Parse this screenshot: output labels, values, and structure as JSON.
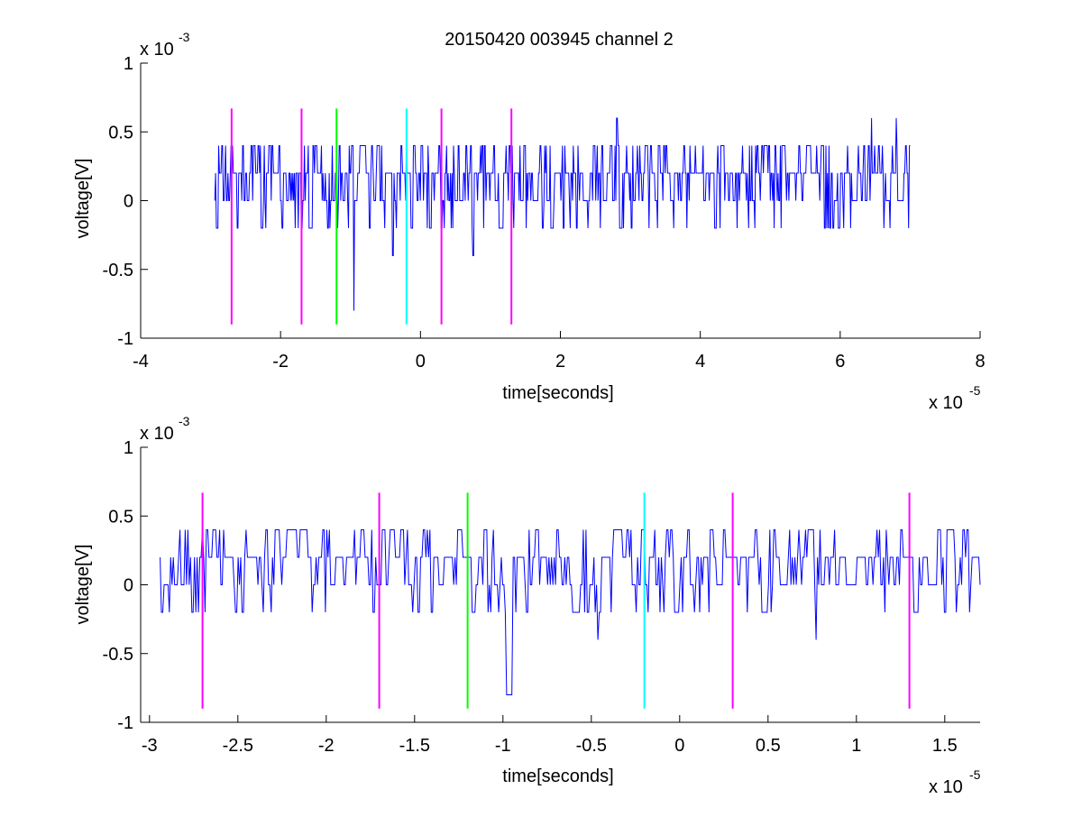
{
  "figure": {
    "title": "20150420 003945 channel 2"
  },
  "chart_data": [
    {
      "type": "line",
      "title": "20150420 003945 channel 2",
      "xlabel": "time[seconds]",
      "ylabel": "voltage[V]",
      "x_exponent": "x 10",
      "x_exponent_power": "-5",
      "y_exponent": "x 10",
      "y_exponent_power": "-3",
      "xlim": [
        -4,
        8
      ],
      "ylim": [
        -1,
        1
      ],
      "x_ticks": [
        -4,
        -2,
        0,
        2,
        4,
        6,
        8
      ],
      "x_tick_labels": [
        "-4",
        "-2",
        "0",
        "2",
        "4",
        "6",
        "8"
      ],
      "y_ticks": [
        -1,
        -0.5,
        0,
        0.5,
        1
      ],
      "y_tick_labels": [
        "-1",
        "-0.5",
        "0",
        "0.5",
        "1"
      ],
      "grid": false,
      "series": [
        {
          "color": "#0000ff",
          "x_range": [
            -2.94,
            7.0
          ],
          "levels": [
            0,
            0.2,
            0.4,
            0.6,
            -0.2,
            -0.4,
            -0.8
          ],
          "spikes": [
            {
              "x": -0.95,
              "y": -0.8
            },
            {
              "x": -0.4,
              "y": -0.4
            },
            {
              "x": 0.75,
              "y": -0.4
            },
            {
              "x": 2.8,
              "y": 0.6
            },
            {
              "x": 6.45,
              "y": 0.6
            },
            {
              "x": 6.8,
              "y": 0.6
            }
          ]
        }
      ],
      "markers": [
        {
          "x": -2.7,
          "y_from": -0.9,
          "y_to": 0.67,
          "color": "#ff00ff"
        },
        {
          "x": -1.7,
          "y_from": -0.9,
          "y_to": 0.67,
          "color": "#ff00ff"
        },
        {
          "x": -1.2,
          "y_from": -0.9,
          "y_to": 0.67,
          "color": "#00ff00"
        },
        {
          "x": -0.2,
          "y_from": -0.9,
          "y_to": 0.67,
          "color": "#00ffff"
        },
        {
          "x": 0.3,
          "y_from": -0.9,
          "y_to": 0.67,
          "color": "#ff00ff"
        },
        {
          "x": 1.3,
          "y_from": -0.9,
          "y_to": 0.67,
          "color": "#ff00ff"
        }
      ]
    },
    {
      "type": "line",
      "title": "",
      "xlabel": "time[seconds]",
      "ylabel": "voltage[V]",
      "x_exponent": "x 10",
      "x_exponent_power": "-5",
      "y_exponent": "x 10",
      "y_exponent_power": "-3",
      "xlim": [
        -3.05,
        1.7
      ],
      "ylim": [
        -1,
        1
      ],
      "x_ticks": [
        -3,
        -2.5,
        -2,
        -1.5,
        -1,
        -0.5,
        0,
        0.5,
        1,
        1.5
      ],
      "x_tick_labels": [
        "-3",
        "-2.5",
        "-2",
        "-1.5",
        "-1",
        "-0.5",
        "0",
        "0.5",
        "1",
        "1.5"
      ],
      "y_ticks": [
        -1,
        -0.5,
        0,
        0.5,
        1
      ],
      "y_tick_labels": [
        "-1",
        "-0.5",
        "0",
        "0.5",
        "1"
      ],
      "grid": false,
      "series": [
        {
          "color": "#0000ff",
          "x_range": [
            -2.94,
            1.7
          ],
          "levels": [
            0,
            0.2,
            0.4,
            -0.2,
            -0.4,
            -0.8
          ],
          "spikes": [
            {
              "x": -0.98,
              "y": -0.8
            },
            {
              "x": -0.46,
              "y": -0.4
            },
            {
              "x": 0.77,
              "y": -0.4
            },
            {
              "x": -2.7,
              "y": 0.4
            },
            {
              "x": 1.6,
              "y": 0.4
            }
          ]
        }
      ],
      "markers": [
        {
          "x": -2.7,
          "y_from": -0.9,
          "y_to": 0.67,
          "color": "#ff00ff"
        },
        {
          "x": -1.7,
          "y_from": -0.9,
          "y_to": 0.67,
          "color": "#ff00ff"
        },
        {
          "x": -1.2,
          "y_from": -0.9,
          "y_to": 0.67,
          "color": "#00ff00"
        },
        {
          "x": -0.2,
          "y_from": -0.9,
          "y_to": 0.67,
          "color": "#00ffff"
        },
        {
          "x": 0.3,
          "y_from": -0.9,
          "y_to": 0.67,
          "color": "#ff00ff"
        },
        {
          "x": 1.3,
          "y_from": -0.9,
          "y_to": 0.67,
          "color": "#ff00ff"
        }
      ]
    }
  ]
}
